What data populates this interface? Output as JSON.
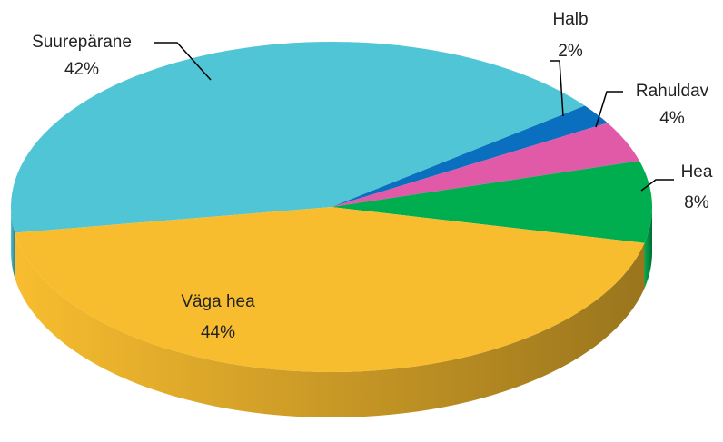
{
  "chart_data": {
    "type": "pie3d",
    "categories": [
      "Suurepärane",
      "Halb",
      "Rahuldav",
      "Hea",
      "Väga hea"
    ],
    "values": [
      42,
      2,
      4,
      8,
      44
    ],
    "value_labels": [
      "42%",
      "2%",
      "4%",
      "8%",
      "44%"
    ],
    "colors": [
      "#4fc5d6",
      "#0b6fc0",
      "#e05aa8",
      "#00ad4f",
      "#f8bd2f"
    ]
  }
}
